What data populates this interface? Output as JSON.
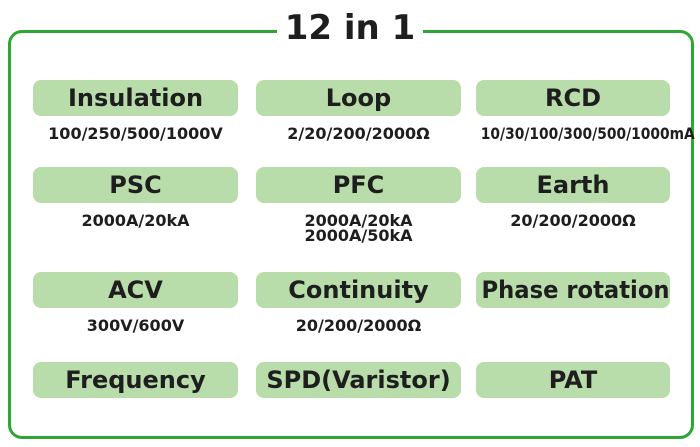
{
  "title": "12 in 1",
  "items": [
    {
      "label": "Insulation",
      "specs": [
        "100/250/500/1000V"
      ]
    },
    {
      "label": "Loop",
      "specs": [
        "2/20/200/2000Ω"
      ]
    },
    {
      "label": "RCD",
      "specs": [
        "10/30/100/300/500/1000mA"
      ]
    },
    {
      "label": "PSC",
      "specs": [
        "2000A/20kA"
      ]
    },
    {
      "label": "PFC",
      "specs": [
        "2000A/20kA",
        "2000A/50kA"
      ]
    },
    {
      "label": "Earth",
      "specs": [
        "20/200/2000Ω"
      ]
    },
    {
      "label": "ACV",
      "specs": [
        "300V/600V"
      ]
    },
    {
      "label": "Continuity",
      "specs": [
        "20/200/2000Ω"
      ]
    },
    {
      "label": "Phase rotation"
    },
    {
      "label": "Frequency"
    },
    {
      "label": "SPD(Varistor)"
    },
    {
      "label": "PAT"
    }
  ]
}
